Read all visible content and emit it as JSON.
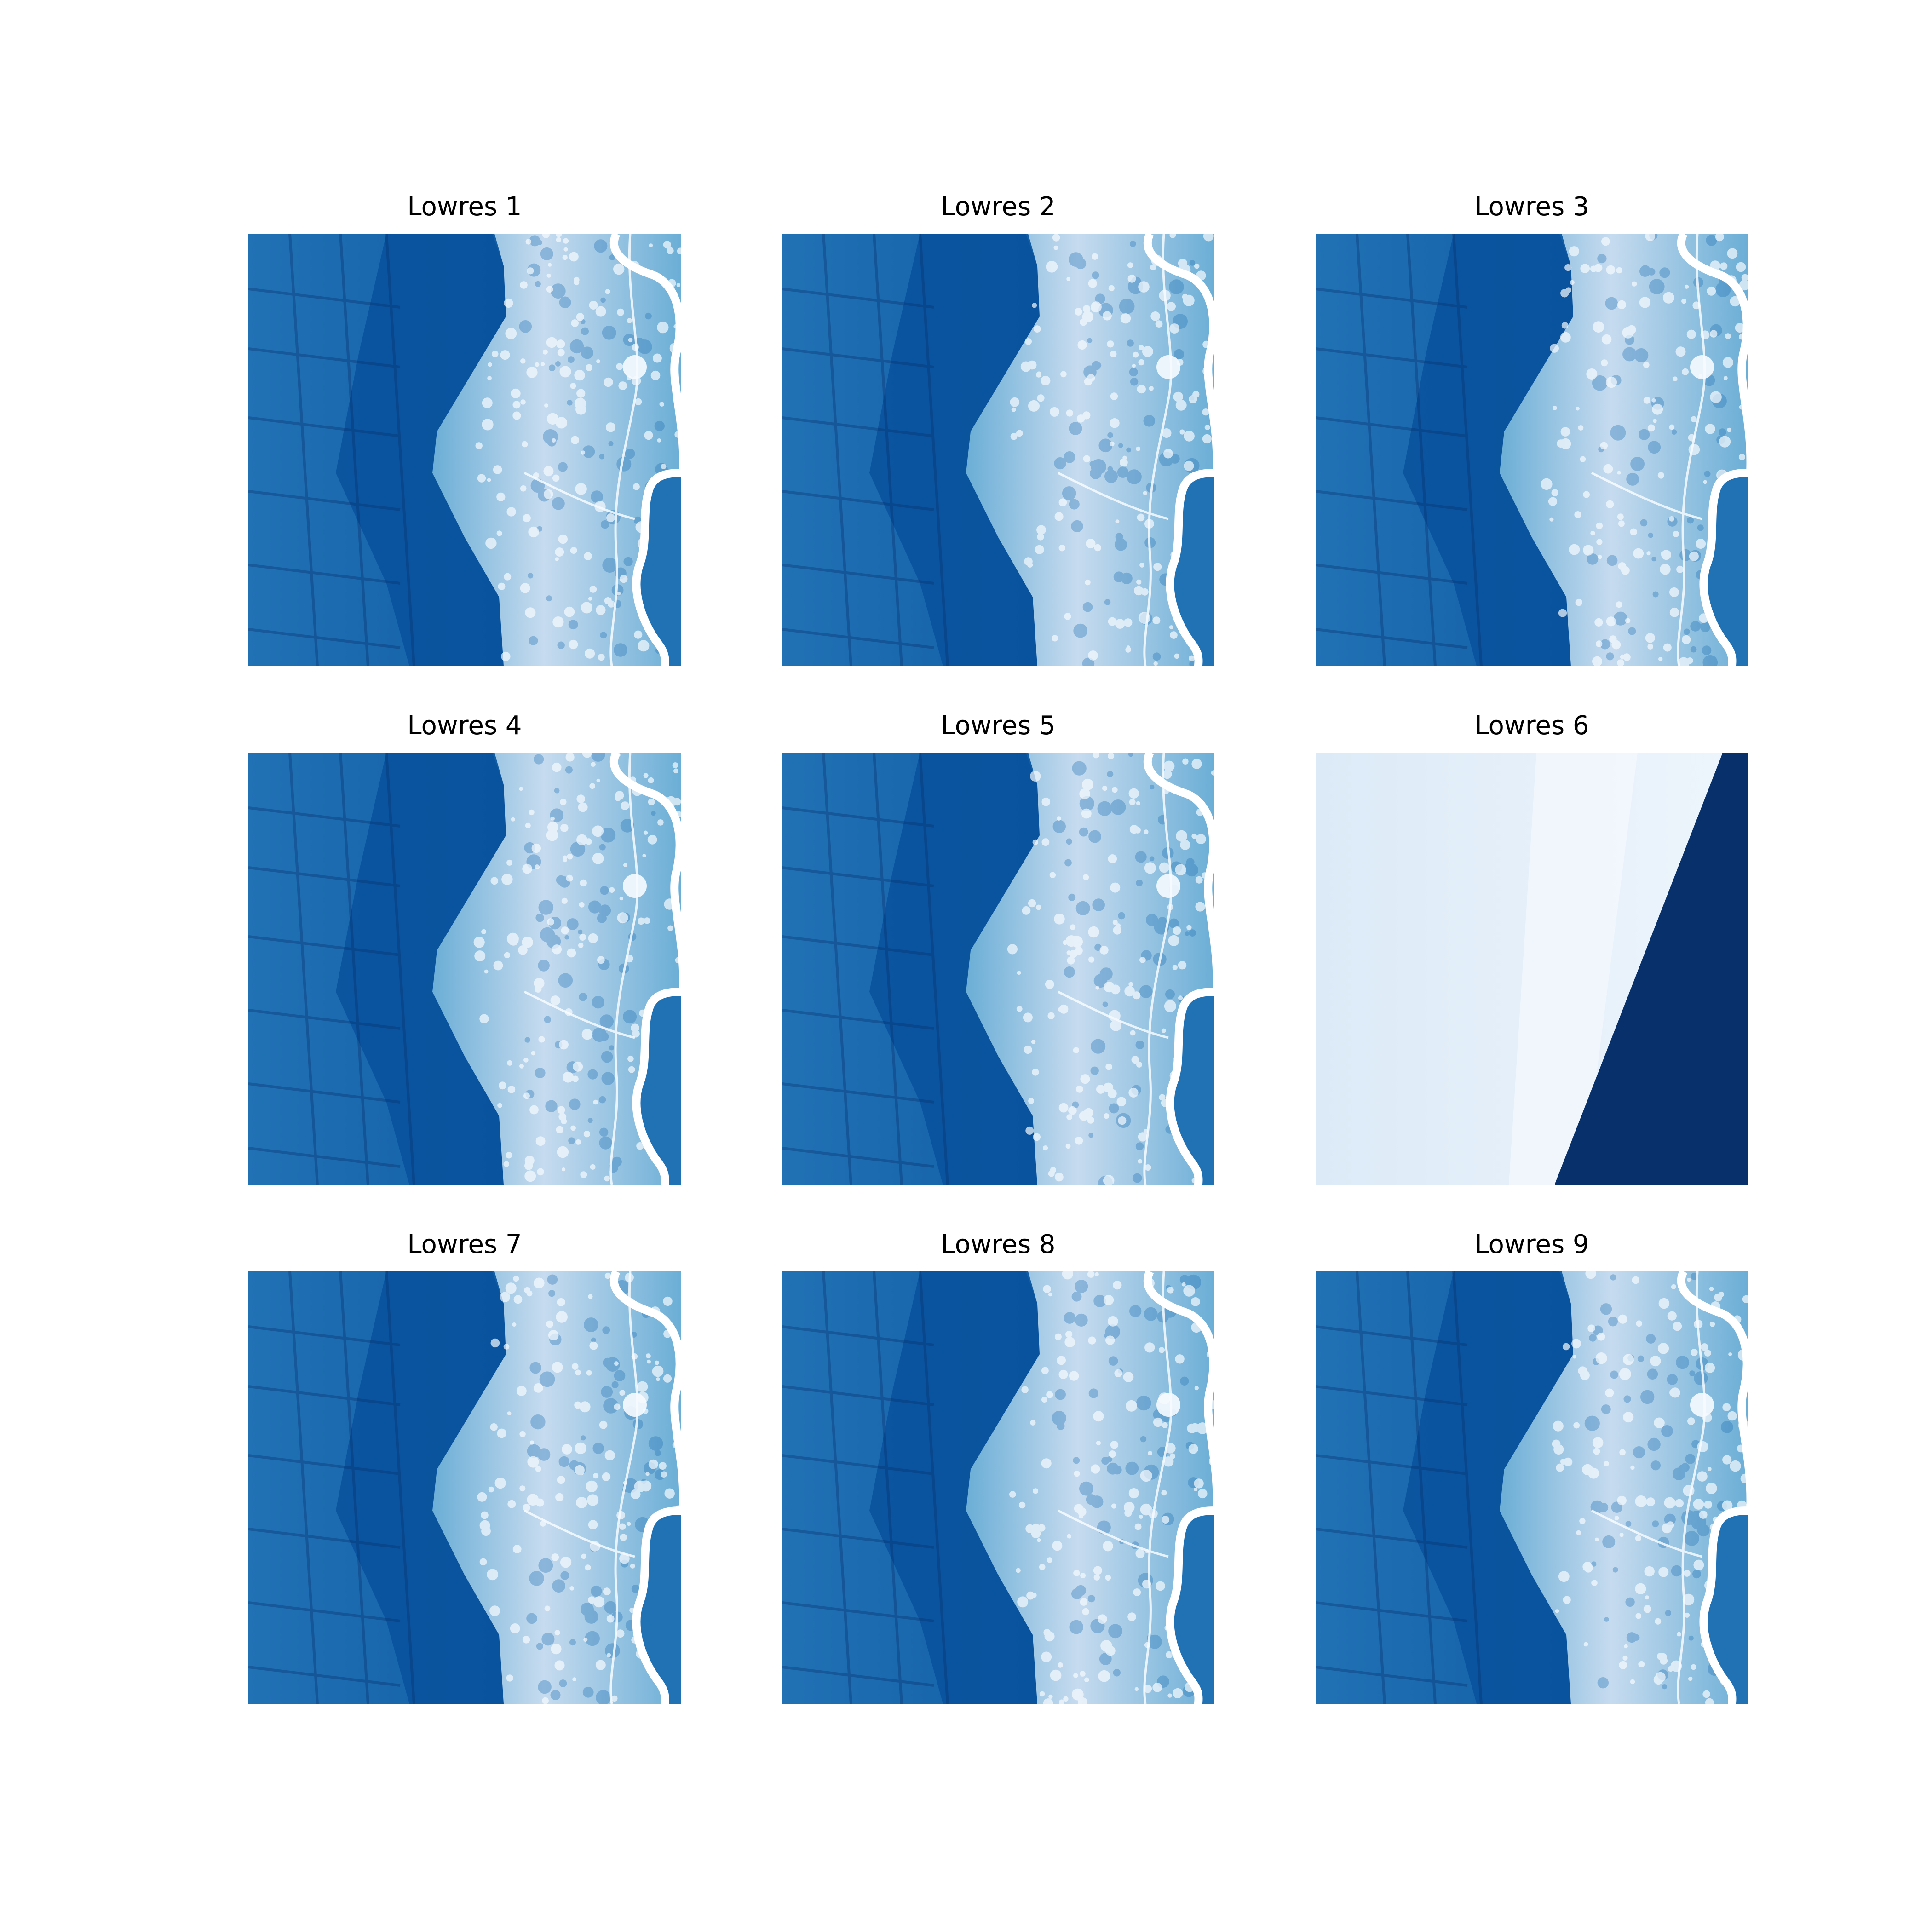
{
  "panels": [
    {
      "title": "Lowres 1",
      "variant": "river"
    },
    {
      "title": "Lowres 2",
      "variant": "river"
    },
    {
      "title": "Lowres 3",
      "variant": "river"
    },
    {
      "title": "Lowres 4",
      "variant": "river"
    },
    {
      "title": "Lowres 5",
      "variant": "river"
    },
    {
      "title": "Lowres 6",
      "variant": "edge"
    },
    {
      "title": "Lowres 7",
      "variant": "river"
    },
    {
      "title": "Lowres 8",
      "variant": "river"
    },
    {
      "title": "Lowres 9",
      "variant": "river"
    }
  ],
  "colormap": {
    "darkest": "#08306b",
    "dark": "#08519c",
    "mid": "#2171b5",
    "light": "#6baed6",
    "lighter": "#c6dbef",
    "lightest": "#f7fbff"
  }
}
